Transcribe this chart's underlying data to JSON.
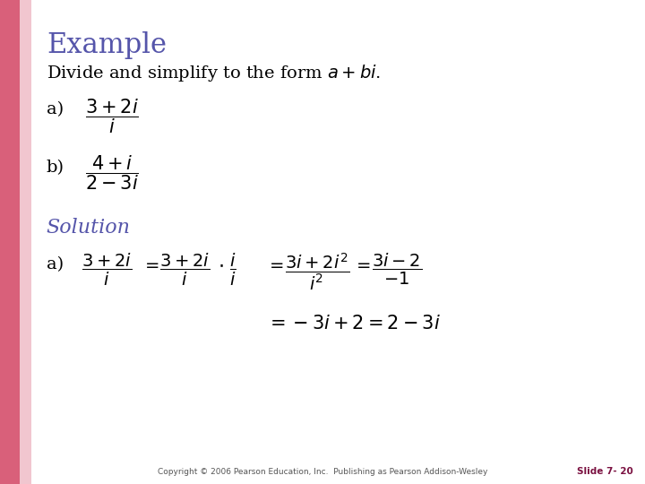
{
  "background_color": "#ffffff",
  "left_bar_color": "#d9607a",
  "left_bar_fade_color": "#e8a0b0",
  "title": "Example",
  "title_color": "#5555aa",
  "title_fontsize": 22,
  "body_color": "#000000",
  "solution_color": "#5555aa",
  "footer_text": "Copyright © 2006 Pearson Education, Inc.  Publishing as Pearson Addison-Wesley",
  "slide_label": "Slide 7- 20",
  "slide_label_color": "#7a1040",
  "math_fontsize": 15,
  "sol_math_fontsize": 14
}
